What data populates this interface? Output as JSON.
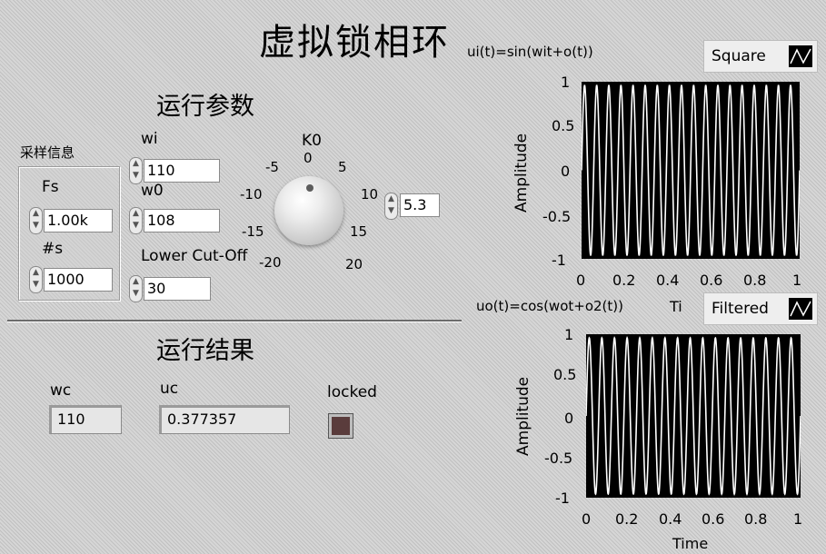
{
  "title": "虚拟锁相环",
  "params": {
    "heading": "运行参数",
    "sampling": {
      "label": "采样信息",
      "fs": {
        "label": "Fs",
        "value": "1.00k"
      },
      "ns": {
        "label": "#s",
        "value": "1000"
      }
    },
    "wi": {
      "label": "wi",
      "value": "110"
    },
    "w0": {
      "label": "w0",
      "value": "108"
    },
    "cutoff": {
      "label": "Lower Cut-Off",
      "value": "30"
    },
    "k0": {
      "label": "K0",
      "value": "5.3",
      "scale": [
        "-20",
        "-15",
        "-10",
        "-5",
        "0",
        "5",
        "10",
        "15",
        "20"
      ]
    }
  },
  "results": {
    "heading": "运行结果",
    "wc": {
      "label": "wc",
      "value": "110"
    },
    "uc": {
      "label": "uc",
      "value": "0.377357"
    },
    "locked": {
      "label": "locked",
      "value": false,
      "led_color": "#5a3c3c"
    }
  },
  "chart_data": [
    {
      "type": "line",
      "title": "ui(t)=sin(wit+o(t))",
      "legend": "Square",
      "xlabel": "Ti",
      "ylabel": "Amplitude",
      "xlim": [
        0,
        1
      ],
      "ylim": [
        -1,
        1
      ],
      "xticks": [
        "0",
        "0.2",
        "0.4",
        "0.6",
        "0.8",
        "1"
      ],
      "yticks": [
        "1",
        "0.5",
        "0",
        "-0.5",
        "-1"
      ],
      "series": [
        {
          "name": "Square",
          "frequency_cycles": 18,
          "amplitude": 1
        }
      ],
      "line_color": "#ffffff",
      "background": "#000000"
    },
    {
      "type": "line",
      "title": "uo(t)=cos(wot+o2(t))",
      "legend": "Filtered",
      "xlabel": "Time",
      "ylabel": "Amplitude",
      "xlim": [
        0,
        1
      ],
      "ylim": [
        -1,
        1
      ],
      "xticks": [
        "0",
        "0.2",
        "0.4",
        "0.6",
        "0.8",
        "1"
      ],
      "yticks": [
        "1",
        "0.5",
        "0",
        "-0.5",
        "-1"
      ],
      "series": [
        {
          "name": "Filtered",
          "frequency_cycles": 17,
          "amplitude": 1
        }
      ],
      "line_color": "#ffffff",
      "background": "#000000"
    }
  ]
}
